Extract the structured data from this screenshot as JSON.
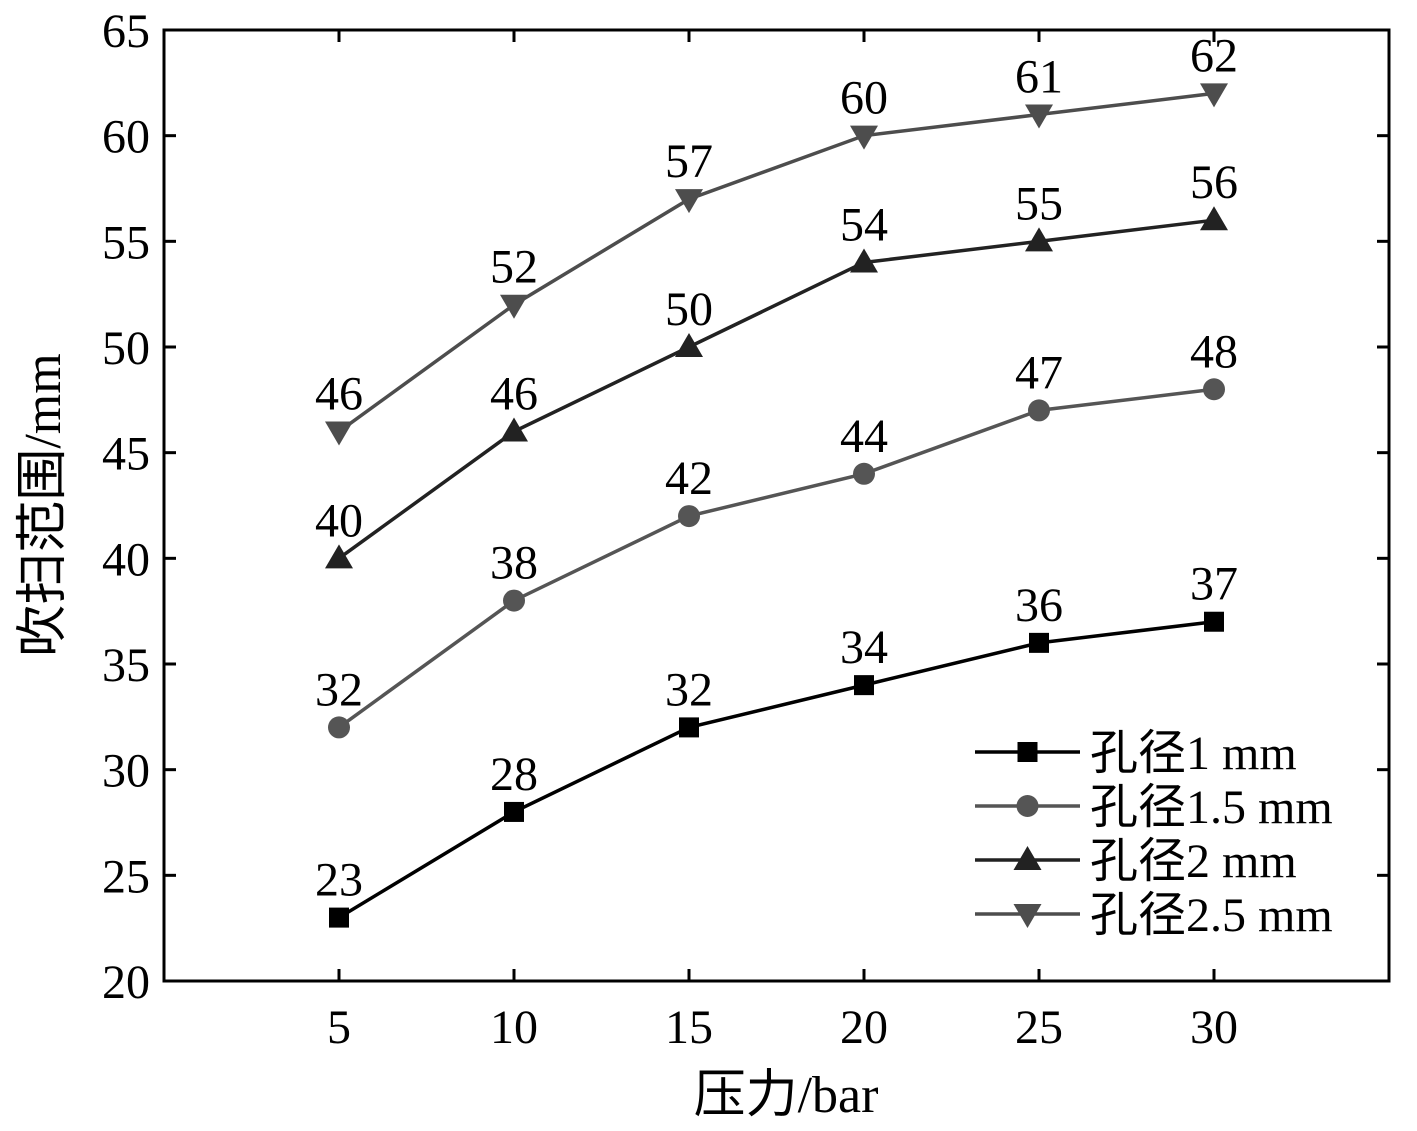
{
  "chart_data": {
    "type": "line",
    "xlabel": "压力/bar",
    "ylabel": "吹扫范围/mm",
    "x": [
      5,
      10,
      15,
      20,
      25,
      30
    ],
    "x_ticks": [
      "5",
      "10",
      "15",
      "20",
      "25",
      "30"
    ],
    "xlim": [
      0,
      35
    ],
    "ylim": [
      20,
      65
    ],
    "y_ticks": [
      "20",
      "25",
      "30",
      "35",
      "40",
      "45",
      "50",
      "55",
      "60",
      "65"
    ],
    "grid": false,
    "legend_position": "bottom-right",
    "series": [
      {
        "name": "孔径1 mm",
        "marker": "square",
        "color": "#000000",
        "values": [
          23,
          28,
          32,
          34,
          36,
          37
        ]
      },
      {
        "name": "孔径1.5 mm",
        "marker": "circle",
        "color": "#555555",
        "values": [
          32,
          38,
          42,
          44,
          47,
          48
        ]
      },
      {
        "name": "孔径2 mm",
        "marker": "triangle-up",
        "color": "#222222",
        "values": [
          40,
          46,
          50,
          54,
          55,
          56
        ]
      },
      {
        "name": "孔径2.5 mm",
        "marker": "triangle-down",
        "color": "#4d4d4d",
        "values": [
          46,
          52,
          57,
          60,
          61,
          62
        ]
      }
    ]
  }
}
